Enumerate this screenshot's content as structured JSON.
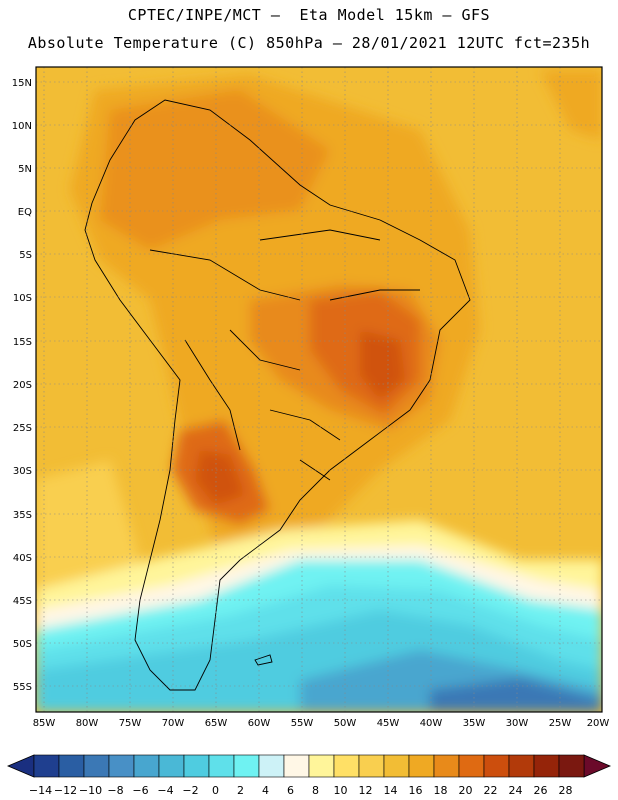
{
  "header": {
    "line1": "CPTEC/INPE/MCT –  Eta Model 15km – GFS",
    "line2": "Absolute Temperature (C) 850hPa – 28/01/2021 12UTC fct=235h"
  },
  "map": {
    "lat_labels": [
      "15N",
      "10N",
      "5N",
      "EQ",
      "5S",
      "10S",
      "15S",
      "20S",
      "25S",
      "30S",
      "35S",
      "40S",
      "45S",
      "50S",
      "55S"
    ],
    "lon_labels": [
      "85W",
      "80W",
      "75W",
      "70W",
      "65W",
      "60W",
      "55W",
      "50W",
      "45W",
      "40W",
      "35W",
      "30W",
      "25W",
      "20W"
    ]
  },
  "colorbar": {
    "labels": [
      "-14",
      "-12",
      "-10",
      "-8",
      "-6",
      "-4",
      "-2",
      "0",
      "2",
      "4",
      "6",
      "8",
      "10",
      "12",
      "14",
      "16",
      "18",
      "20",
      "22",
      "24",
      "26",
      "28"
    ],
    "colors": [
      "#1f3f8f",
      "#2a5ea3",
      "#3b78b5",
      "#4890c6",
      "#48a6cf",
      "#4ab8d6",
      "#4fcce0",
      "#5fe0ea",
      "#6ff2f2",
      "#cdf2f7",
      "#fff7e6",
      "#fff59a",
      "#ffe066",
      "#f9cf4f",
      "#f2bd35",
      "#efa923",
      "#e88a1a",
      "#df6a12",
      "#cc4e0d",
      "#b23a0a",
      "#952409",
      "#7a1810"
    ],
    "low_end_color": "#1a2f80",
    "high_end_color": "#6b0a2a"
  }
}
